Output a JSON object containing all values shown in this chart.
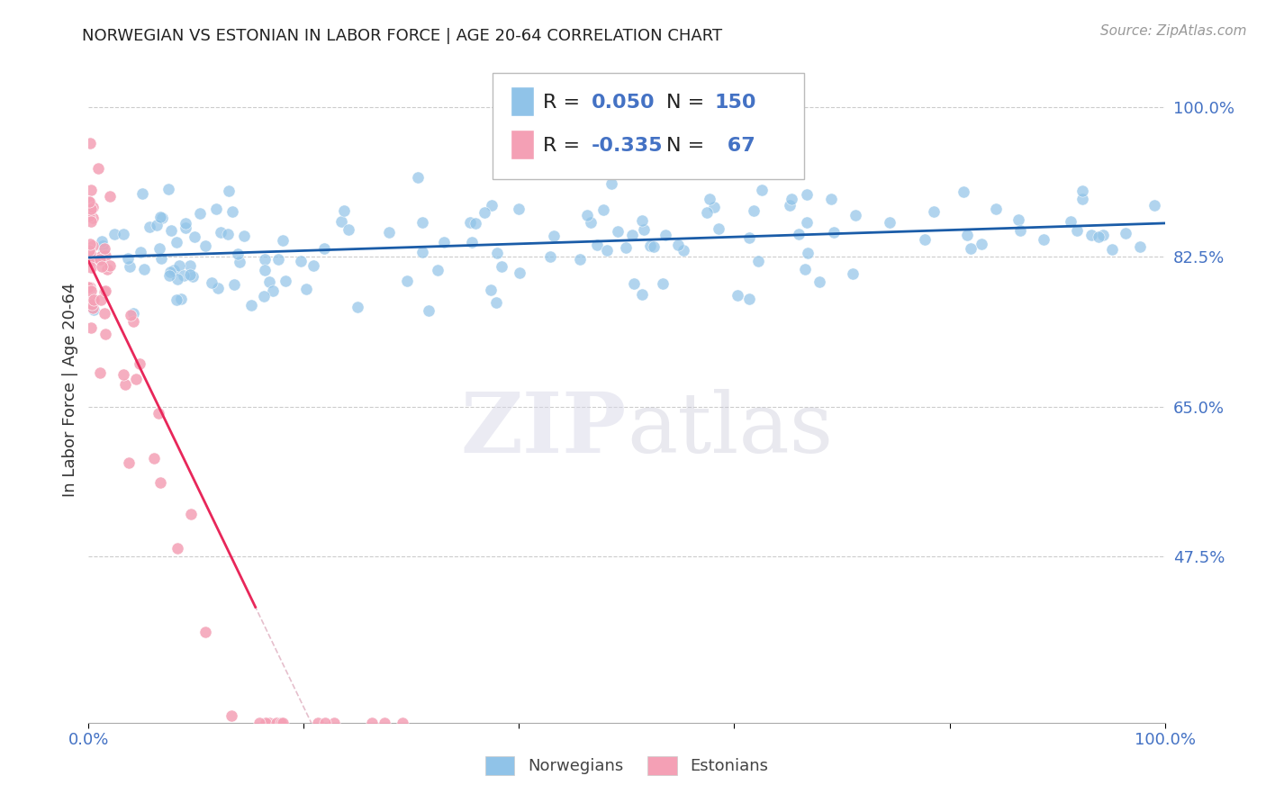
{
  "title": "NORWEGIAN VS ESTONIAN IN LABOR FORCE | AGE 20-64 CORRELATION CHART",
  "source_text": "Source: ZipAtlas.com",
  "ylabel": "In Labor Force | Age 20-64",
  "xlim": [
    0.0,
    1.0
  ],
  "ylim": [
    0.28,
    1.06
  ],
  "yticks": [
    0.475,
    0.65,
    0.825,
    1.0
  ],
  "ytick_labels": [
    "47.5%",
    "65.0%",
    "82.5%",
    "100.0%"
  ],
  "xticks": [
    0.0,
    1.0
  ],
  "xtick_labels": [
    "0.0%",
    "100.0%"
  ],
  "norwegian_R": 0.05,
  "norwegian_N": 150,
  "estonian_R": -0.335,
  "estonian_N": 67,
  "norwegian_color": "#90C3E8",
  "estonian_color": "#F4A0B5",
  "trend_norwegian_color": "#1A5CA8",
  "trend_estonian_color": "#E8275A",
  "background_color": "#FFFFFF",
  "grid_color": "#CCCCCC",
  "title_color": "#222222",
  "axis_label_color": "#333333",
  "tick_color": "#4472C4",
  "watermark_text": "ZIPatlas",
  "legend_label_norwegian": "Norwegians",
  "legend_label_estonian": "Estonians"
}
